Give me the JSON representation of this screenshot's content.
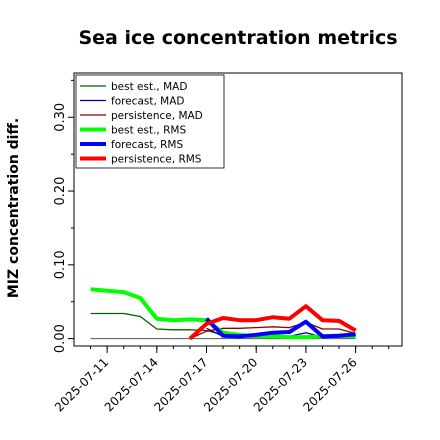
{
  "chart_data": {
    "type": "line",
    "title": "Sea ice concentration metrics",
    "xlabel": "",
    "ylabel": "MIZ concentration diff.",
    "ylim": [
      -0.01,
      0.36
    ],
    "grid": false,
    "legend_placement": "top-left",
    "y_ticks": [
      "0.00",
      "0.10",
      "0.20",
      "0.30"
    ],
    "y_tick_values": [
      0.0,
      0.1,
      0.2,
      0.3
    ],
    "x_ticks": [
      "2025-07-11",
      "2025-07-14",
      "2025-07-17",
      "2025-07-20",
      "2025-07-23",
      "2025-07-26"
    ],
    "x_tick_day_values": [
      11,
      14,
      17,
      20,
      23,
      26
    ],
    "highlighted_tick": "2025-07-17",
    "highlight_color": "#228b22",
    "xlim_days": [
      9.0,
      28.8
    ],
    "series": [
      {
        "name": "best est., MAD",
        "color": "#006400",
        "width": 1.3,
        "x": [
          10,
          11,
          12,
          13,
          14,
          15,
          16,
          17,
          18,
          19,
          20,
          21,
          22,
          23,
          24,
          25,
          26
        ],
        "y": [
          0.034,
          0.034,
          0.034,
          0.03,
          0.013,
          0.012,
          0.012,
          0.011,
          0.005,
          0.004,
          0.003,
          0.003,
          0.003,
          0.003,
          0.003,
          0.003,
          0.004
        ]
      },
      {
        "name": "forecast, MAD",
        "color": "#00008b",
        "width": 1.3,
        "x": [
          17,
          18,
          19,
          20,
          21,
          22,
          23,
          24,
          25,
          26
        ],
        "y": [
          0.014,
          0.003,
          0.003,
          0.003,
          0.003,
          0.003,
          0.008,
          0.002,
          0.002,
          0.003
        ]
      },
      {
        "name": "persistence, MAD",
        "color": "#8b0000",
        "width": 1.3,
        "x": [
          16,
          17,
          18,
          19,
          20,
          21,
          22,
          23,
          24,
          25,
          26
        ],
        "y": [
          0.0,
          0.01,
          0.014,
          0.014,
          0.015,
          0.016,
          0.015,
          0.022,
          0.013,
          0.013,
          0.007
        ]
      },
      {
        "name": "best est., RMS",
        "color": "#00ff00",
        "width": 4,
        "x": [
          10,
          11,
          12,
          13,
          14,
          15,
          16,
          17,
          18,
          19,
          20,
          21,
          22,
          23,
          24,
          25,
          26
        ],
        "y": [
          0.067,
          0.065,
          0.063,
          0.055,
          0.027,
          0.025,
          0.026,
          0.025,
          0.008,
          0.005,
          0.003,
          0.003,
          0.002,
          0.002,
          0.003,
          0.004,
          0.003
        ]
      },
      {
        "name": "forecast, RMS",
        "color": "#0000ff",
        "width": 4,
        "x": [
          17,
          18,
          19,
          20,
          21,
          22,
          23,
          24,
          25,
          26
        ],
        "y": [
          0.027,
          0.004,
          0.003,
          0.005,
          0.008,
          0.009,
          0.023,
          0.003,
          0.004,
          0.006
        ]
      },
      {
        "name": "persistence, RMS",
        "color": "#ff0000",
        "width": 4,
        "x": [
          16,
          17,
          18,
          19,
          20,
          21,
          22,
          23,
          24,
          25,
          26
        ],
        "y": [
          0.0,
          0.02,
          0.028,
          0.025,
          0.025,
          0.029,
          0.027,
          0.044,
          0.025,
          0.024,
          0.011
        ]
      }
    ],
    "zero_line_color": "#555555"
  }
}
